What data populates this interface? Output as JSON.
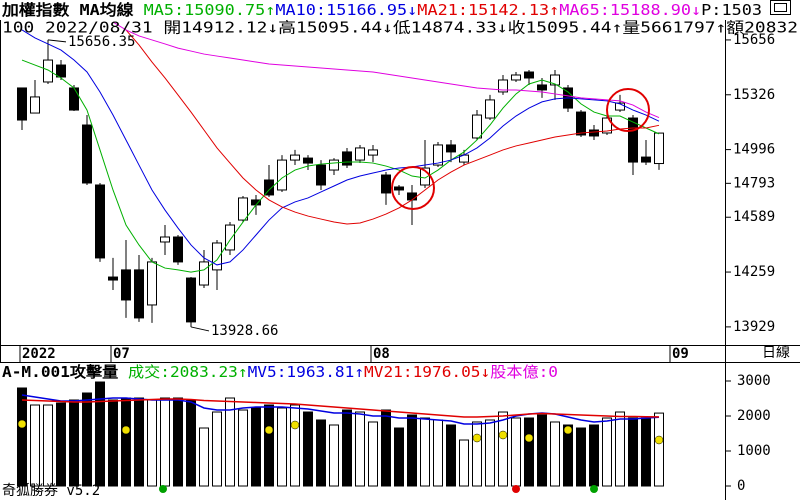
{
  "header": {
    "title": "加權指數",
    "indicator": "MA均線",
    "extra": "P:1503",
    "info": "100 2022/08/31 開14912.12↓高15095.44↓低14874.33↓收15095.44↑量5661797↑額20832",
    "timeframe": "日線",
    "footer": "奇狐勝券 v5.2"
  },
  "chart_data": [
    {
      "type": "candlestick",
      "categories": [
        "2022",
        null,
        null,
        null,
        null,
        null,
        null,
        "07",
        null,
        null,
        null,
        null,
        null,
        null,
        null,
        null,
        null,
        null,
        null,
        null,
        null,
        null,
        null,
        null,
        null,
        null,
        null,
        "08",
        null,
        null,
        null,
        null,
        null,
        null,
        null,
        null,
        null,
        null,
        null,
        null,
        null,
        null,
        null,
        null,
        null,
        null,
        null,
        null,
        null,
        null,
        "09"
      ],
      "open": [
        15367,
        15216,
        15403,
        15505,
        15367,
        15144,
        14783,
        14229,
        14272,
        14272,
        14061,
        14440,
        14470,
        14223,
        14181,
        14272,
        14392,
        14572,
        14693,
        14813,
        14753,
        14933,
        14945,
        14903,
        14873,
        14982,
        14933,
        14963,
        14843,
        14771,
        14735,
        14783,
        14903,
        15024,
        14921,
        15066,
        15186,
        15343,
        15415,
        15463,
        15385,
        15385,
        15367,
        15222,
        15114,
        15096,
        15234,
        15186,
        14951,
        14912.12,
        null
      ],
      "high": [
        15367,
        15415,
        15656.35,
        15535,
        15385,
        15204,
        14795,
        14344,
        14452,
        14362,
        14344,
        14542,
        14482,
        14229,
        14392,
        14452,
        14560,
        14717,
        14723,
        14903,
        14963,
        14994,
        14963,
        14933,
        14945,
        15006,
        15024,
        15024,
        14861,
        14783,
        14783,
        15054,
        15042,
        15054,
        14994,
        15234,
        15325,
        15445,
        15463,
        15475,
        15427,
        15475,
        15385,
        15234,
        15144,
        15198,
        15325,
        15204,
        15054,
        15095.44,
        null
      ],
      "low": [
        15114,
        15216,
        15391,
        15415,
        15228,
        14783,
        14320,
        14151,
        13983,
        13959,
        13953,
        14362,
        14302,
        13928.66,
        14163,
        14151,
        14362,
        14560,
        14603,
        14711,
        14741,
        14903,
        14873,
        14753,
        14843,
        14885,
        14915,
        14921,
        14663,
        14723,
        14542,
        14765,
        14891,
        14921,
        14903,
        15054,
        15174,
        15325,
        15403,
        15385,
        15307,
        15295,
        15222,
        15072,
        15054,
        15084,
        15222,
        14843,
        14903,
        14874.33,
        null
      ],
      "close": [
        15174,
        15313,
        15535,
        15433,
        15234,
        14795,
        14344,
        14211,
        14091,
        13983,
        14320,
        14470,
        14320,
        13959,
        14320,
        14434,
        14542,
        14705,
        14663,
        14723,
        14933,
        14963,
        14915,
        14783,
        14933,
        14903,
        15006,
        14994,
        14735,
        14753,
        14693,
        14885,
        15024,
        14982,
        14963,
        15204,
        15295,
        15415,
        15445,
        15427,
        15355,
        15445,
        15246,
        15084,
        15078,
        15186,
        15276,
        14921,
        14921,
        15095.44,
        null
      ],
      "up_color": "#ffffff",
      "down_color": "#000000",
      "series": [
        {
          "name": "MA5",
          "color": "#00b000",
          "readout": ":15090.75↑",
          "values": [
            15535,
            15505,
            15475,
            15427,
            15367,
            15234,
            14994,
            14753,
            14542,
            14422,
            14320,
            14283,
            14272,
            14259,
            14272,
            14332,
            14452,
            14560,
            14663,
            14753,
            14825,
            14873,
            14897,
            14909,
            14915,
            14921,
            14921,
            14915,
            14897,
            14873,
            14837,
            14825,
            14873,
            14933,
            14982,
            15054,
            15144,
            15246,
            15331,
            15391,
            15415,
            15391,
            15343,
            15271,
            15222,
            15198,
            15198,
            15162,
            15126,
            15090.75,
            null
          ]
        },
        {
          "name": "MA10",
          "color": "#0000e0",
          "readout": ":15166.95↓",
          "values": [
            15716,
            15668,
            15632,
            15595,
            15535,
            15463,
            15343,
            15204,
            15054,
            14903,
            14753,
            14632,
            14524,
            14422,
            14344,
            14302,
            14320,
            14392,
            14482,
            14572,
            14645,
            14681,
            14705,
            14741,
            14777,
            14813,
            14837,
            14855,
            14873,
            14885,
            14891,
            14903,
            14915,
            14933,
            14963,
            15006,
            15066,
            15138,
            15198,
            15246,
            15283,
            15301,
            15307,
            15301,
            15295,
            15289,
            15271,
            15234,
            15204,
            15166.95,
            null
          ]
        },
        {
          "name": "MA21",
          "color": "#e00000",
          "readout": ":15142.13↑",
          "values": [
            null,
            null,
            null,
            null,
            null,
            null,
            null,
            null,
            15716,
            15626,
            15523,
            15427,
            15325,
            15222,
            15114,
            15006,
            14915,
            14825,
            14753,
            14693,
            14651,
            14620,
            14596,
            14578,
            14560,
            14548,
            14554,
            14578,
            14608,
            14645,
            14693,
            14753,
            14813,
            14861,
            14903,
            14933,
            14963,
            14994,
            15018,
            15036,
            15054,
            15072,
            15084,
            15096,
            15102,
            15108,
            15120,
            15126,
            15126,
            15142.13,
            null
          ]
        },
        {
          "name": "MA65",
          "color": "#e000e0",
          "readout": ":15188.90↓",
          "values": [
            null,
            null,
            null,
            null,
            null,
            null,
            null,
            15764,
            15716,
            15680,
            15656,
            15632,
            15607,
            15589,
            15571,
            15559,
            15547,
            15535,
            15523,
            15511,
            15505,
            15499,
            15493,
            15487,
            15481,
            15475,
            15469,
            15463,
            15451,
            15439,
            15427,
            15415,
            15403,
            15391,
            15379,
            15367,
            15361,
            15355,
            15355,
            15349,
            15343,
            15331,
            15319,
            15307,
            15301,
            15295,
            15289,
            15264,
            15222,
            15188.9,
            null
          ]
        }
      ],
      "annotations": [
        {
          "text": "15656.35",
          "value": 15656.35
        },
        {
          "text": "13928.66",
          "value": 13928.66
        }
      ],
      "ylim": [
        13820,
        15776
      ],
      "yticks": [
        15656,
        15326,
        14996,
        14793,
        14589,
        14259,
        13929
      ]
    },
    {
      "type": "volume",
      "title": "A-M.001攻擊量",
      "value_name": "成交",
      "readout": ":2083.23↑",
      "color": "#00b000",
      "values": [
        2800,
        2314,
        2314,
        2371,
        2457,
        2657,
        2971,
        2457,
        2514,
        2514,
        2457,
        2514,
        2514,
        2457,
        1657,
        2114,
        2514,
        2171,
        2229,
        2314,
        2229,
        2314,
        2114,
        1886,
        1743,
        2171,
        2114,
        1829,
        2171,
        1657,
        2029,
        1943,
        1886,
        1743,
        1314,
        1829,
        1886,
        2114,
        1943,
        1943,
        2029,
        1829,
        1743,
        1657,
        1743,
        1943,
        2114,
        1943,
        1943,
        2083.23,
        null
      ],
      "series": [
        {
          "name": "MV5",
          "color": "#0000e0",
          "readout": ":1963.81↑",
          "values": [
            2600,
            2543,
            2486,
            2429,
            2429,
            2457,
            2486,
            2514,
            2514,
            2486,
            2457,
            2457,
            2457,
            2400,
            2229,
            2171,
            2171,
            2229,
            2257,
            2257,
            2257,
            2229,
            2200,
            2143,
            2086,
            2086,
            2057,
            2000,
            2000,
            1943,
            1943,
            1914,
            1886,
            1857,
            1771,
            1771,
            1800,
            1886,
            2000,
            2057,
            2086,
            2057,
            1971,
            1886,
            1829,
            1857,
            1914,
            1914,
            1943,
            1963.81,
            null
          ]
        },
        {
          "name": "MV21",
          "color": "#e00000",
          "readout": ":1976.05↓",
          "values": [
            2457,
            2443,
            2429,
            2414,
            2400,
            2400,
            2414,
            2429,
            2443,
            2457,
            2471,
            2486,
            2486,
            2471,
            2443,
            2429,
            2414,
            2400,
            2386,
            2371,
            2357,
            2343,
            2314,
            2286,
            2257,
            2229,
            2200,
            2171,
            2143,
            2114,
            2086,
            2057,
            2029,
            2000,
            1971,
            1971,
            1986,
            2000,
            2029,
            2057,
            2071,
            2057,
            2043,
            2029,
            2014,
            2000,
            1986,
            1986,
            1980,
            1976.05,
            null
          ]
        }
      ],
      "extra": "股本億:0",
      "extra_color": "#e000e0",
      "ylim": [
        -314,
        3457
      ],
      "yticks": [
        0,
        1000,
        2000,
        3000
      ]
    }
  ]
}
